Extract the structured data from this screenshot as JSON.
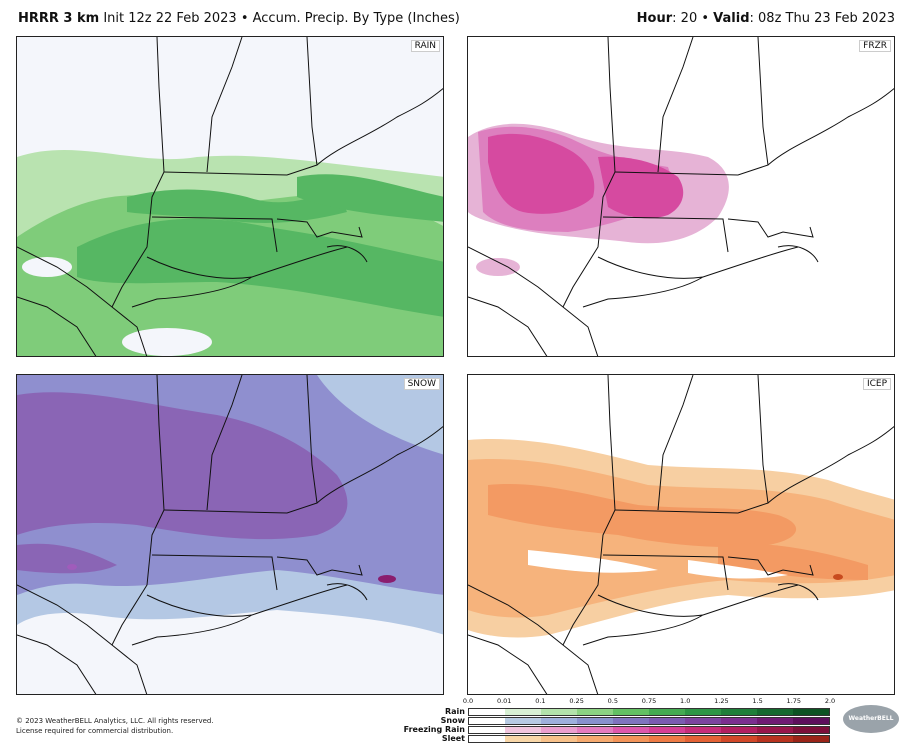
{
  "header": {
    "model": "HRRR 3 km",
    "init": "Init 12z 22 Feb 2023",
    "sep": "•",
    "product": "Accum. Precip. By Type (Inches)",
    "hour_label": "Hour",
    "hour_value": ": 20",
    "valid_label": "Valid",
    "valid_value": ": 08z Thu 23 Feb 2023"
  },
  "panels": {
    "rain": {
      "label": "RAIN"
    },
    "frzr": {
      "label": "FRZR"
    },
    "snow": {
      "label": "SNOW"
    },
    "icep": {
      "label": "ICEP"
    }
  },
  "legend": {
    "ticks": [
      "0.0",
      "0.01",
      "0.1",
      "0.25",
      "0.5",
      "0.75",
      "1.0",
      "1.25",
      "1.5",
      "1.75",
      "2.0"
    ],
    "rows": [
      {
        "name": "Rain",
        "colors": [
          "#ffffff",
          "#d8f0d4",
          "#b3e2ab",
          "#8cd283",
          "#63c063",
          "#44ab52",
          "#2d9645",
          "#1f7f3a",
          "#15692e",
          "#0d5323"
        ]
      },
      {
        "name": "Snow",
        "colors": [
          "#ffffff",
          "#b7cbe3",
          "#9eb0dc",
          "#8891cc",
          "#7f74be",
          "#7b5bb1",
          "#7c449f",
          "#7b2f8f",
          "#6f1b73",
          "#5d0f5c"
        ]
      },
      {
        "name": "Freezing Rain",
        "colors": [
          "#ffffff",
          "#f2c6de",
          "#ec9fcf",
          "#e57cbf",
          "#de58ac",
          "#d63f95",
          "#c72d7a",
          "#b21f61",
          "#98164b",
          "#7c0f3a"
        ]
      },
      {
        "name": "Sleet",
        "colors": [
          "#ffffff",
          "#f9d7a8",
          "#f8c18a",
          "#f6aa6f",
          "#f39459",
          "#ee7b45",
          "#e46235",
          "#d24828",
          "#b8331f",
          "#9a2418"
        ]
      }
    ]
  },
  "footer": {
    "line1": "© 2023 WeatherBELL Analytics, LLC. All rights reserved.",
    "line2": "License required for commercial distribution."
  },
  "logo": {
    "text": "WeatherBELL"
  },
  "colors": {
    "rain_light": "#b9e3b0",
    "rain_mid": "#7fcc7a",
    "rain_dark": "#56b763",
    "frzr_light": "#e6b3d6",
    "frzr_mid": "#dd7fbf",
    "frzr_dark": "#d64aa0",
    "snow_light": "#b4c8e4",
    "snow_mid": "#8f8fcf",
    "snow_dark": "#8a65b5",
    "icep_light": "#f7cfa2",
    "icep_mid": "#f6b37c",
    "icep_dark": "#f39a63"
  }
}
